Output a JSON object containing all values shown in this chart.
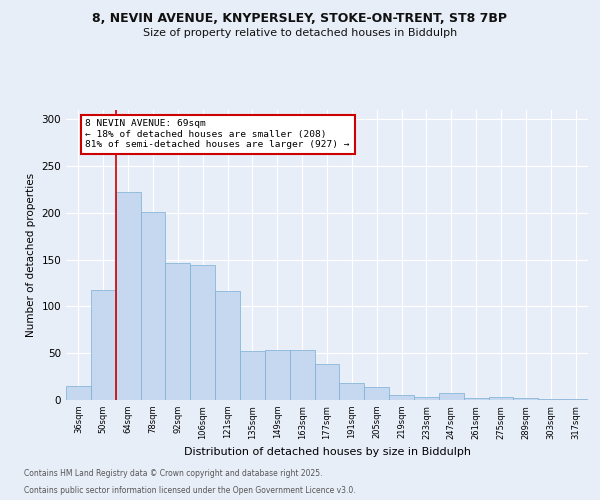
{
  "title_line1": "8, NEVIN AVENUE, KNYPERSLEY, STOKE-ON-TRENT, ST8 7BP",
  "title_line2": "Size of property relative to detached houses in Biddulph",
  "xlabel": "Distribution of detached houses by size in Biddulph",
  "ylabel": "Number of detached properties",
  "categories": [
    "36sqm",
    "50sqm",
    "64sqm",
    "78sqm",
    "92sqm",
    "106sqm",
    "121sqm",
    "135sqm",
    "149sqm",
    "163sqm",
    "177sqm",
    "191sqm",
    "205sqm",
    "219sqm",
    "233sqm",
    "247sqm",
    "261sqm",
    "275sqm",
    "289sqm",
    "303sqm",
    "317sqm"
  ],
  "values": [
    15,
    118,
    222,
    201,
    146,
    144,
    117,
    52,
    53,
    53,
    38,
    18,
    14,
    5,
    3,
    8,
    2,
    3,
    2,
    1,
    1
  ],
  "bar_color": "#c5d8ef",
  "bar_edgecolor": "#7aadd4",
  "vline_x": 1.5,
  "vline_color": "#cc0000",
  "annotation_text": "8 NEVIN AVENUE: 69sqm\n← 18% of detached houses are smaller (208)\n81% of semi-detached houses are larger (927) →",
  "annotation_box_facecolor": "#ffffff",
  "annotation_box_edgecolor": "#cc0000",
  "ylim": [
    0,
    310
  ],
  "yticks": [
    0,
    50,
    100,
    150,
    200,
    250,
    300
  ],
  "background_color": "#e8eef8",
  "grid_color": "#ffffff",
  "footer_line1": "Contains HM Land Registry data © Crown copyright and database right 2025.",
  "footer_line2": "Contains public sector information licensed under the Open Government Licence v3.0."
}
